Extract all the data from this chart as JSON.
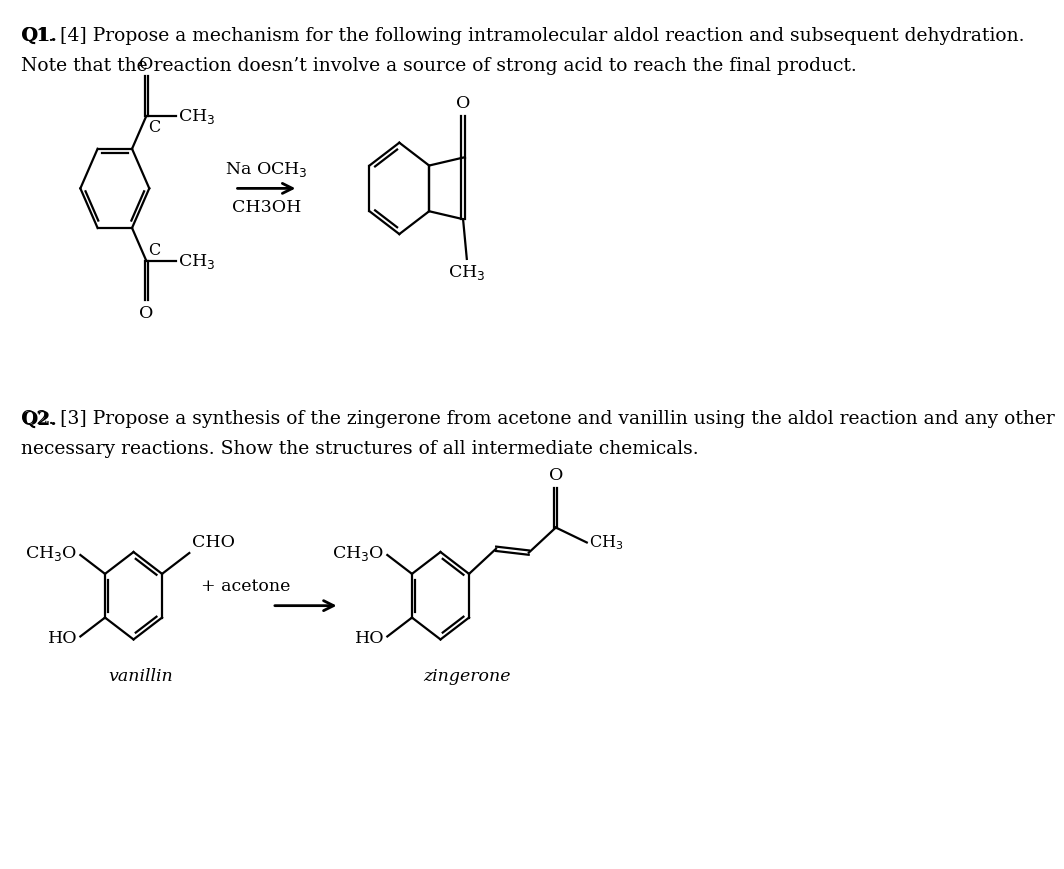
{
  "bg_color": "#ffffff",
  "q1_line1_bold": "Q1.",
  "q1_line1_rest": " [4] Propose a mechanism for the following intramolecular aldol reaction and subsequent dehydration.",
  "q1_line2": "Note that the reaction doesn’t involve a source of strong acid to reach the final product.",
  "q2_line1_bold": "Q2.",
  "q2_line1_rest": " [3] Propose a synthesis of the zingerone from acetone and vanillin using the aldol reaction and any other",
  "q2_line2": "necessary reactions. Show the structures of all intermediate chemicals.",
  "reagent_above": "Na OCH₃",
  "reagent_below": "CH3OH",
  "plus_text": "+ acetone",
  "vanillin_label": "vanillin",
  "zingerone_label": "zingerone",
  "fs_title": 13.5,
  "fs_mol": 12.5,
  "lw": 1.6
}
